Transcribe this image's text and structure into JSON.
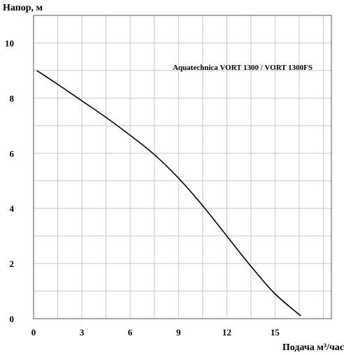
{
  "chart_data": {
    "type": "line",
    "ylabel": "Напор, м",
    "xlabel": "Подача м³/час",
    "annotation": "Aquatechnica VORT 1300 / VORT 1300FS",
    "xlim": [
      0,
      18.5
    ],
    "ylim": [
      0,
      11
    ],
    "x_ticks": [
      0,
      3,
      6,
      9,
      12,
      15
    ],
    "y_ticks": [
      0,
      2,
      4,
      6,
      8,
      10
    ],
    "x_grid_step": 1.5,
    "y_grid_step": 1,
    "grid": true,
    "series": [
      {
        "x": [
          0.2,
          1.5,
          3,
          4.5,
          6,
          7.5,
          9,
          10.5,
          12,
          13.5,
          15,
          16.6
        ],
        "y": [
          9.0,
          8.5,
          7.9,
          7.3,
          6.65,
          5.95,
          5.1,
          4.1,
          3.0,
          1.9,
          0.9,
          0.1
        ]
      }
    ]
  }
}
